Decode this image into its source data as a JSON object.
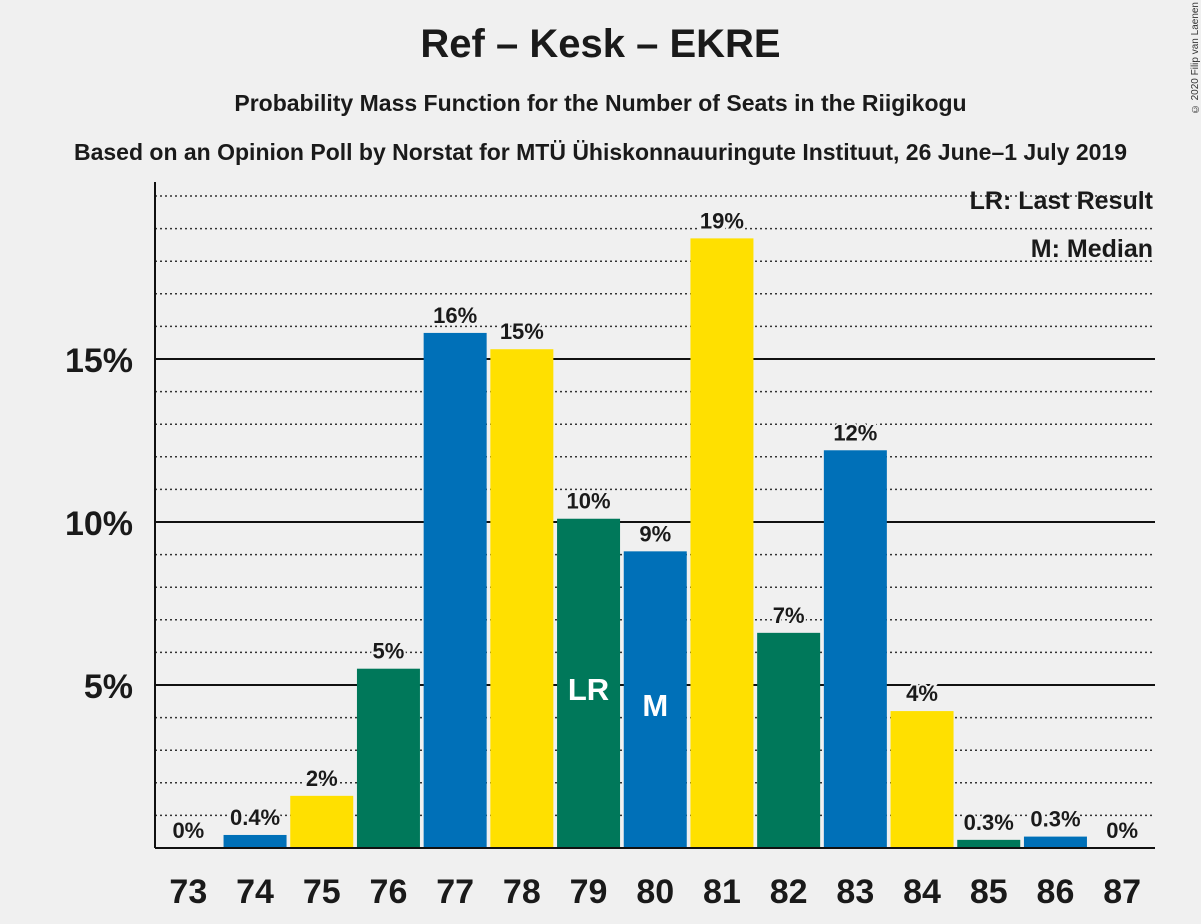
{
  "title": "Ref – Kesk – EKRE",
  "subtitle": "Probability Mass Function for the Number of Seats in the Riigikogu",
  "subtitle2": "Based on an Opinion Poll by Norstat for MTÜ Ühiskonnauuringute Instituut, 26 June–1 July 2019",
  "copyright": "© 2020 Filip van Laenen",
  "legend": {
    "lr": "LR: Last Result",
    "m": "M: Median"
  },
  "colors": {
    "blue": "#0070b8",
    "yellow": "#ffe000",
    "green": "#00785a",
    "background": "#f0f0f0"
  },
  "chart_data": {
    "type": "bar",
    "categories": [
      "73",
      "74",
      "75",
      "76",
      "77",
      "78",
      "79",
      "80",
      "81",
      "82",
      "83",
      "84",
      "85",
      "86",
      "87"
    ],
    "values": [
      0,
      0.4,
      1.6,
      5.5,
      15.8,
      15.3,
      10.1,
      9.1,
      18.7,
      6.6,
      12.2,
      4.2,
      0.25,
      0.35,
      0
    ],
    "labels": [
      "0%",
      "0.4%",
      "2%",
      "5%",
      "16%",
      "15%",
      "10%",
      "9%",
      "19%",
      "7%",
      "12%",
      "4%",
      "0.3%",
      "0.3%",
      "0%"
    ],
    "colors": [
      "blue",
      "blue",
      "yellow",
      "green",
      "blue",
      "yellow",
      "green",
      "blue",
      "yellow",
      "green",
      "blue",
      "yellow",
      "green",
      "blue",
      "yellow"
    ],
    "markers": {
      "79": "LR",
      "80": "M"
    },
    "yticks": [
      5,
      10,
      15
    ],
    "ytick_labels": [
      "5%",
      "10%",
      "15%"
    ],
    "ylim": [
      0,
      20
    ],
    "grid": true
  }
}
